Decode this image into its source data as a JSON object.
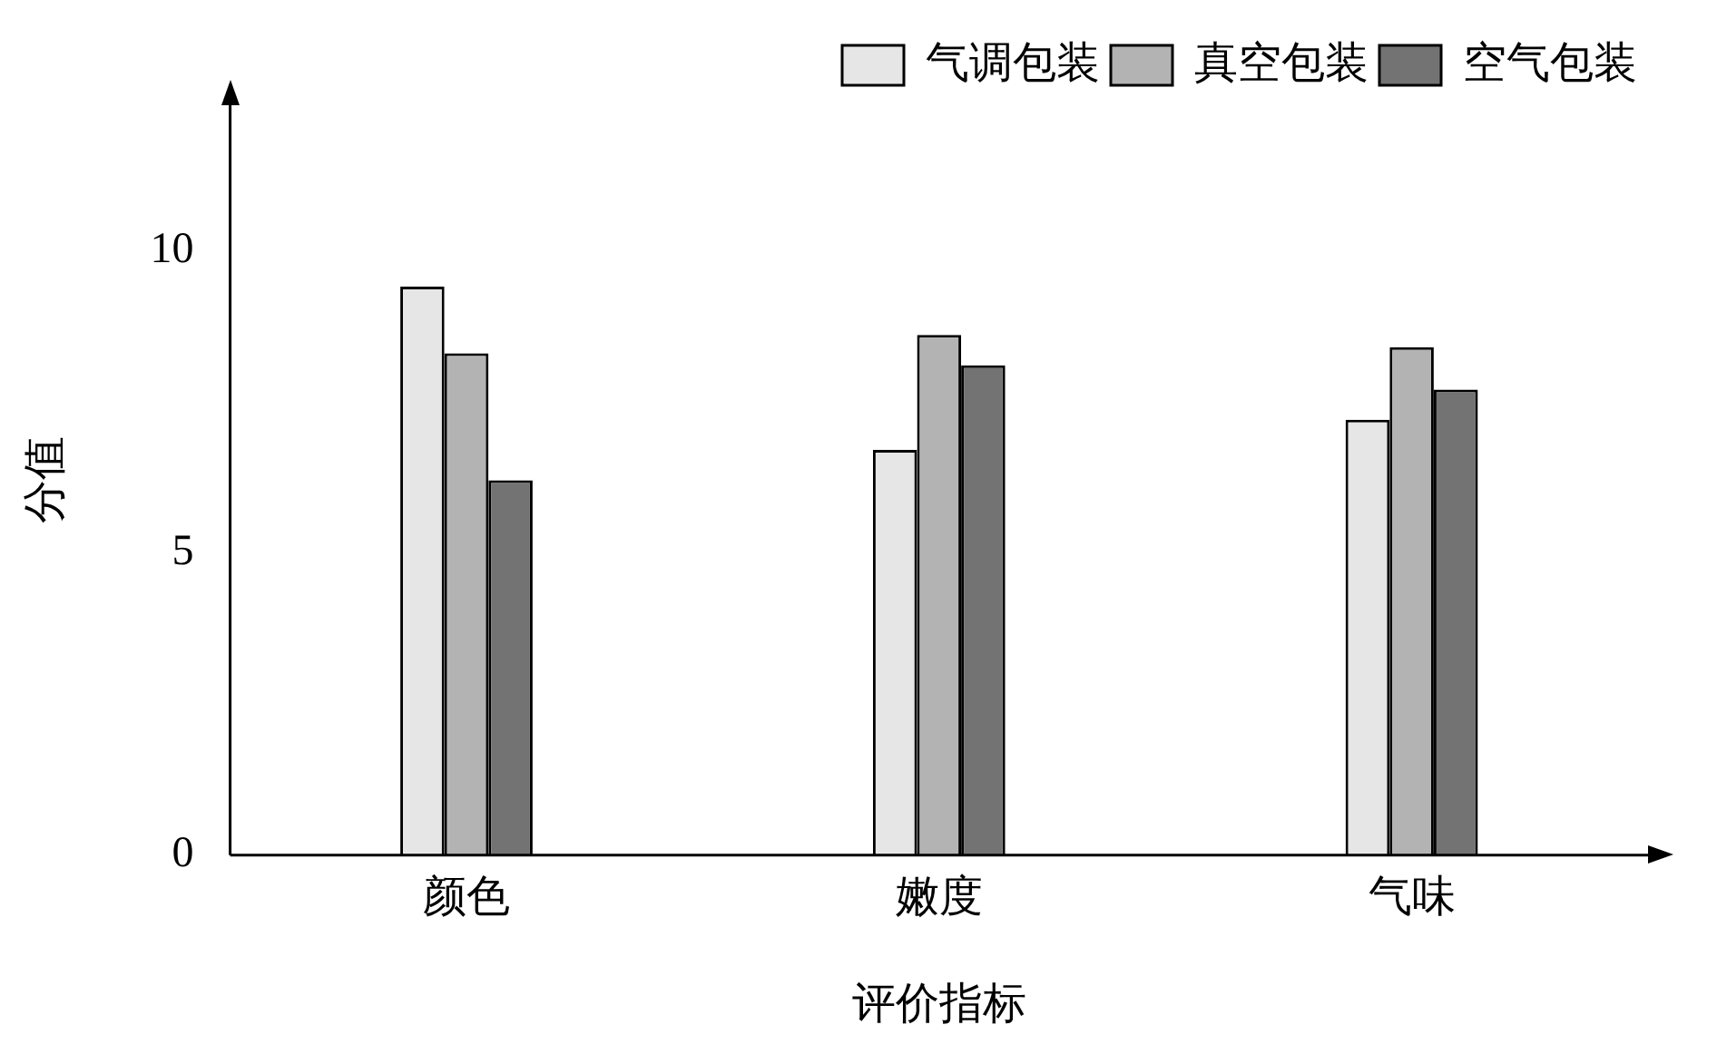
{
  "chart_data": {
    "type": "bar",
    "xlabel": "评价指标",
    "ylabel": "分值",
    "categories": [
      "颜色",
      "嫩度",
      "气味"
    ],
    "series": [
      {
        "name": "气调包装",
        "color": "#e6e6e6",
        "values": [
          9.4,
          6.7,
          7.2
        ]
      },
      {
        "name": "真空包装",
        "color": "#b3b3b3",
        "values": [
          8.3,
          8.6,
          8.4
        ]
      },
      {
        "name": "空气包装",
        "color": "#737373",
        "values": [
          6.2,
          8.1,
          7.7
        ]
      }
    ],
    "ylim": [
      0,
      12.4
    ],
    "yticks": [
      0,
      5,
      10
    ],
    "grid": false,
    "legend": "top right"
  }
}
